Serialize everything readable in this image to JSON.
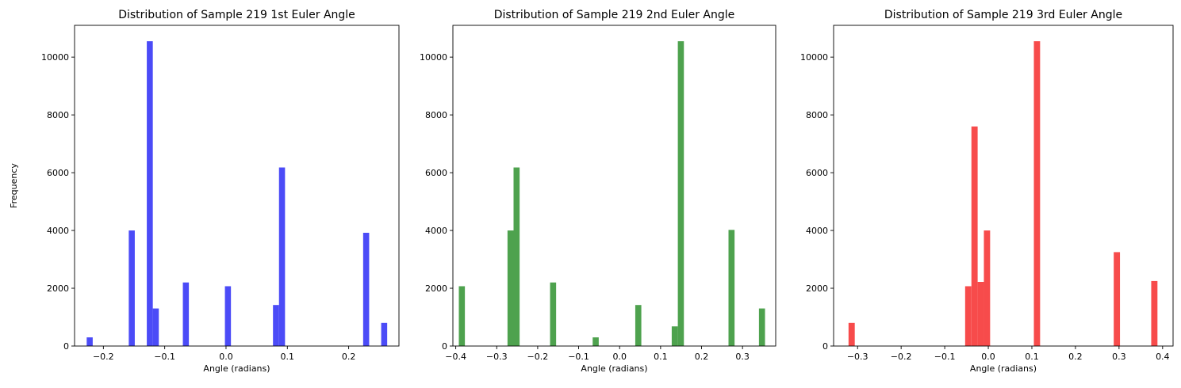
{
  "chart_data": [
    {
      "type": "bar",
      "title": "Distribution of Sample 219 1st Euler Angle",
      "xlabel": "Angle (radians)",
      "ylabel": "Frequency",
      "xlim": [
        -0.247,
        0.282
      ],
      "ylim": [
        0,
        11100
      ],
      "xticks": [
        -0.2,
        -0.1,
        0.0,
        0.1,
        0.2
      ],
      "xtick_labels": [
        "−0.2",
        "−0.1",
        "0.0",
        "0.1",
        "0.2"
      ],
      "yticks": [
        0,
        2000,
        4000,
        6000,
        8000,
        10000
      ],
      "ytick_labels": [
        "0",
        "2000",
        "4000",
        "6000",
        "8000",
        "10000"
      ],
      "color": "#4b4bf7",
      "bin_width": 0.0098,
      "bins": [
        {
          "x": -0.2223,
          "y": 300
        },
        {
          "x": -0.1537,
          "y": 4000
        },
        {
          "x": -0.1243,
          "y": 10550
        },
        {
          "x": -0.1145,
          "y": 1300
        },
        {
          "x": -0.0655,
          "y": 2200
        },
        {
          "x": 0.0031,
          "y": 2070
        },
        {
          "x": 0.0815,
          "y": 1420
        },
        {
          "x": 0.0913,
          "y": 6180
        },
        {
          "x": 0.2285,
          "y": 3920
        },
        {
          "x": 0.2579,
          "y": 800
        }
      ],
      "grid": false,
      "legend": "none"
    },
    {
      "type": "bar",
      "title": "Distribution of Sample 219 2nd Euler Angle",
      "xlabel": "Angle (radians)",
      "ylabel": "",
      "xlim": [
        -0.407,
        0.381
      ],
      "ylim": [
        0,
        11100
      ],
      "xticks": [
        -0.4,
        -0.3,
        -0.2,
        -0.1,
        0.0,
        0.1,
        0.2,
        0.3
      ],
      "xtick_labels": [
        "−0.4",
        "−0.3",
        "−0.2",
        "−0.1",
        "0.0",
        "0.1",
        "0.2",
        "0.3"
      ],
      "yticks": [
        0,
        2000,
        4000,
        6000,
        8000,
        10000
      ],
      "ytick_labels": [
        "0",
        "2000",
        "4000",
        "6000",
        "8000",
        "10000"
      ],
      "color": "#4ea24e",
      "bin_width": 0.0148,
      "bins": [
        {
          "x": -0.3851,
          "y": 2070
        },
        {
          "x": -0.2663,
          "y": 4000
        },
        {
          "x": -0.2515,
          "y": 6180
        },
        {
          "x": -0.1624,
          "y": 2200
        },
        {
          "x": -0.0584,
          "y": 300
        },
        {
          "x": 0.0456,
          "y": 1420
        },
        {
          "x": 0.1346,
          "y": 680
        },
        {
          "x": 0.1495,
          "y": 10550
        },
        {
          "x": 0.2732,
          "y": 4020
        },
        {
          "x": 0.3475,
          "y": 1300
        }
      ],
      "grid": false,
      "legend": "none"
    },
    {
      "type": "bar",
      "title": "Distribution of Sample 219 3rd Euler Angle",
      "xlabel": "Angle (radians)",
      "ylabel": "",
      "xlim": [
        -0.355,
        0.424
      ],
      "ylim": [
        0,
        11100
      ],
      "xticks": [
        -0.3,
        -0.2,
        -0.1,
        0.0,
        0.1,
        0.2,
        0.3,
        0.4
      ],
      "xtick_labels": [
        "−0.3",
        "−0.2",
        "−0.1",
        "0.0",
        "0.1",
        "0.2",
        "0.3",
        "0.4"
      ],
      "yticks": [
        0,
        2000,
        4000,
        6000,
        8000,
        10000
      ],
      "ytick_labels": [
        "0",
        "2000",
        "4000",
        "6000",
        "8000",
        "10000"
      ],
      "color": "#f74b4b",
      "bin_width": 0.0143,
      "bins": [
        {
          "x": -0.3136,
          "y": 800
        },
        {
          "x": -0.046,
          "y": 2070
        },
        {
          "x": -0.0316,
          "y": 7600
        },
        {
          "x": -0.0173,
          "y": 2220
        },
        {
          "x": -0.003,
          "y": 4000
        },
        {
          "x": 0.1117,
          "y": 10550
        },
        {
          "x": 0.295,
          "y": 3250
        },
        {
          "x": 0.381,
          "y": 2250
        }
      ],
      "grid": false,
      "legend": "none"
    }
  ]
}
